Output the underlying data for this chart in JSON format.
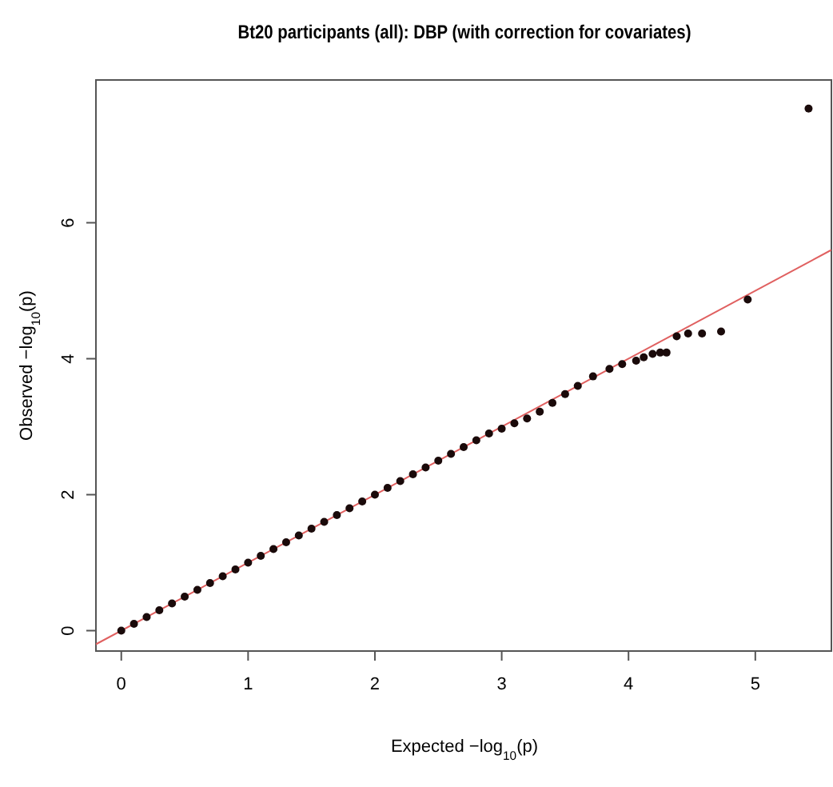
{
  "chart_data": {
    "type": "scatter",
    "title": "Bt20 participants (all): DBP (with correction for covariates)",
    "xlabel": "Expected −log$_{10}$(p)",
    "ylabel": "Observed −log$_{10}$(p)",
    "xlim": [
      -0.2,
      5.6
    ],
    "ylim": [
      -0.3,
      8.1
    ],
    "xticks": [
      0,
      1,
      2,
      3,
      4,
      5
    ],
    "yticks": [
      0,
      2,
      4,
      6
    ],
    "grid": false,
    "marker": "circle",
    "series": [
      {
        "type": "line",
        "color": "#e06060",
        "line_style": "solid",
        "marker": "none",
        "x": [
          -0.2,
          5.6
        ],
        "values": [
          -0.2,
          5.6
        ]
      },
      {
        "color": "#1a0a0a",
        "x": [
          0,
          0.1,
          0.2,
          0.3,
          0.4,
          0.5,
          0.6,
          0.7,
          0.8,
          0.9,
          1,
          1.1,
          1.2,
          1.3,
          1.4,
          1.5,
          1.6,
          1.7,
          1.8,
          1.9,
          2,
          2.1,
          2.2,
          2.3,
          2.4,
          2.5,
          2.6,
          2.7,
          2.8,
          2.9,
          3,
          3.1,
          3.2,
          3.3,
          3.4,
          3.5,
          3.6,
          3.72,
          3.85,
          3.95,
          4.06,
          4.12,
          4.19,
          4.25,
          4.3,
          4.38,
          4.47,
          4.58,
          4.73,
          4.94,
          5.42
        ],
        "values": [
          0,
          0.1,
          0.2,
          0.3,
          0.4,
          0.5,
          0.6,
          0.7,
          0.8,
          0.9,
          1,
          1.1,
          1.2,
          1.3,
          1.4,
          1.5,
          1.6,
          1.7,
          1.8,
          1.9,
          2,
          2.1,
          2.2,
          2.3,
          2.4,
          2.5,
          2.6,
          2.7,
          2.8,
          2.9,
          2.97,
          3.05,
          3.12,
          3.22,
          3.35,
          3.48,
          3.6,
          3.74,
          3.85,
          3.92,
          3.97,
          4.02,
          4.07,
          4.09,
          4.09,
          4.33,
          4.37,
          4.37,
          4.4,
          4.87,
          7.68
        ]
      }
    ]
  }
}
